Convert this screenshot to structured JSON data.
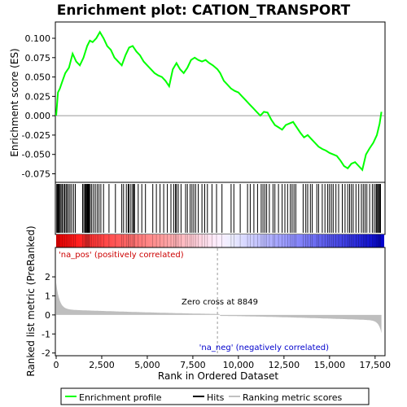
{
  "chart_data": {
    "type": "line",
    "title": "Enrichment plot: CATION_TRANSPORT",
    "xlabel": "Rank in Ordered Dataset",
    "ylabel_top": "Enrichment score (ES)",
    "ylabel_bottom": "Ranked list metric (PreRanked)",
    "xlim": [
      0,
      18000
    ],
    "x_ticks": [
      0,
      2500,
      5000,
      7500,
      10000,
      12500,
      15000,
      17500
    ],
    "x_tick_labels": [
      "0",
      "2,500",
      "5,000",
      "7,500",
      "10,000",
      "12,500",
      "15,000",
      "17,500"
    ],
    "es_ylim": [
      -0.085,
      0.12
    ],
    "es_ticks": [
      -0.075,
      -0.05,
      -0.025,
      0.0,
      0.025,
      0.05,
      0.075,
      0.1
    ],
    "es_tick_labels": [
      "-0.075",
      "-0.050",
      "-0.025",
      "0.000",
      "0.025",
      "0.050",
      "0.075",
      "0.100"
    ],
    "metric_ylim": [
      -2.1,
      3.5
    ],
    "metric_ticks": [
      -2,
      -1,
      0,
      1,
      2
    ],
    "metric_tick_labels": [
      "-2",
      "-1",
      "0",
      "1",
      "2"
    ],
    "series": [
      {
        "name": "Enrichment profile",
        "color": "#00ff00",
        "x": [
          0,
          100,
          200,
          350,
          500,
          700,
          900,
          1100,
          1300,
          1500,
          1700,
          1850,
          2000,
          2200,
          2400,
          2600,
          2800,
          3000,
          3200,
          3400,
          3600,
          3800,
          4000,
          4200,
          4400,
          4600,
          4800,
          5000,
          5200,
          5400,
          5600,
          5800,
          6000,
          6200,
          6400,
          6600,
          6800,
          7000,
          7200,
          7400,
          7600,
          7800,
          8000,
          8200,
          8400,
          8600,
          8849,
          9000,
          9200,
          9400,
          9600,
          9800,
          10000,
          10200,
          10400,
          10600,
          10800,
          11000,
          11200,
          11400,
          11600,
          11800,
          12000,
          12200,
          12400,
          12600,
          12800,
          13000,
          13200,
          13400,
          13600,
          13800,
          14000,
          14200,
          14400,
          14600,
          14800,
          15000,
          15200,
          15400,
          15600,
          15800,
          16000,
          16200,
          16400,
          16600,
          16800,
          17000,
          17200,
          17400,
          17600,
          17750,
          17850
        ],
        "y": [
          0.0,
          0.03,
          0.035,
          0.045,
          0.055,
          0.062,
          0.08,
          0.07,
          0.065,
          0.075,
          0.09,
          0.097,
          0.095,
          0.1,
          0.108,
          0.1,
          0.09,
          0.085,
          0.075,
          0.07,
          0.065,
          0.078,
          0.088,
          0.09,
          0.083,
          0.078,
          0.07,
          0.065,
          0.06,
          0.055,
          0.052,
          0.05,
          0.045,
          0.038,
          0.06,
          0.068,
          0.06,
          0.055,
          0.062,
          0.072,
          0.075,
          0.072,
          0.07,
          0.072,
          0.068,
          0.065,
          0.06,
          0.055,
          0.045,
          0.04,
          0.035,
          0.032,
          0.03,
          0.025,
          0.02,
          0.015,
          0.01,
          0.005,
          0.0,
          0.005,
          0.004,
          -0.005,
          -0.012,
          -0.015,
          -0.018,
          -0.012,
          -0.01,
          -0.008,
          -0.015,
          -0.022,
          -0.028,
          -0.025,
          -0.03,
          -0.035,
          -0.04,
          -0.043,
          -0.045,
          -0.048,
          -0.05,
          -0.052,
          -0.058,
          -0.065,
          -0.068,
          -0.062,
          -0.06,
          -0.065,
          -0.07,
          -0.05,
          -0.042,
          -0.035,
          -0.025,
          -0.01,
          0.005
        ]
      }
    ],
    "hit_positions": [
      30,
      70,
      110,
      160,
      210,
      270,
      330,
      400,
      470,
      540,
      600,
      680,
      760,
      850,
      950,
      1050,
      1450,
      1520,
      1580,
      1620,
      1660,
      1700,
      1740,
      1780,
      1820,
      1870,
      1950,
      2050,
      2150,
      2250,
      2350,
      2450,
      2600,
      2900,
      3250,
      3600,
      3700,
      3850,
      3950,
      4000,
      4100,
      4200,
      4250,
      4300,
      4500,
      4700,
      4900,
      5300,
      5500,
      5700,
      5900,
      6100,
      6300,
      6450,
      6550,
      6600,
      6700,
      6850,
      7100,
      7200,
      7350,
      7450,
      7550,
      7650,
      7800,
      8000,
      8150,
      8300,
      8550,
      8800,
      9100,
      9600,
      9750,
      10100,
      10500,
      10650,
      10850,
      11050,
      11250,
      11350,
      11450,
      11550,
      11700,
      11900,
      12000,
      12200,
      12400,
      12550,
      12700,
      12850,
      12950,
      13050,
      13150,
      13550,
      13700,
      13800,
      13950,
      14050,
      14300,
      14400,
      14600,
      14750,
      14900,
      15000,
      15100,
      15200,
      15350,
      15500,
      15700,
      15850,
      16000,
      16100,
      16200,
      16300,
      16450,
      16600,
      16750,
      16850,
      16950,
      17050,
      17200,
      17350,
      17450,
      17550,
      17600,
      17650,
      17700,
      17750,
      17800
    ],
    "zero_cross": 8849,
    "annotations": {
      "pos_label": "'na_pos' (positively correlated)",
      "neg_label": "'na_neg' (negatively correlated)",
      "zero_cross_label": "Zero cross at 8849"
    },
    "legend": {
      "placement": "bottom",
      "entries": [
        {
          "label": "Enrichment profile",
          "color": "#00ff00"
        },
        {
          "label": "Hits",
          "color": "#000000"
        },
        {
          "label": "Ranking metric scores",
          "color": "#c0c0c0"
        }
      ]
    },
    "colors": {
      "pos": "#ff0000",
      "neg": "#0000ff",
      "metric_fill": "#bebebe",
      "pos_text": "#cc0000",
      "neg_text": "#0000cc",
      "zero_line": "#999999"
    }
  }
}
